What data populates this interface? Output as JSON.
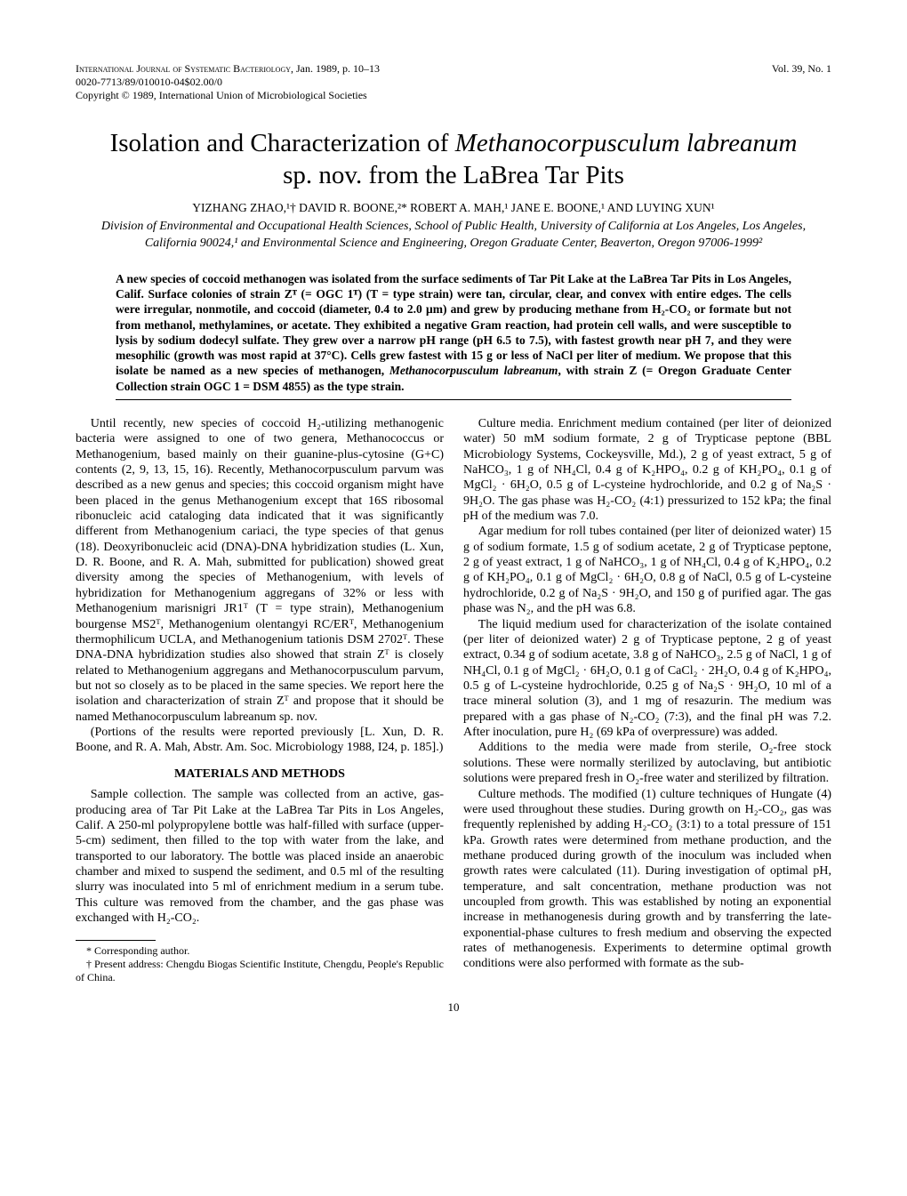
{
  "header": {
    "journal": "International Journal of Systematic Bacteriology",
    "date_pages": ", Jan. 1989, p. 10–13",
    "issn": "0020-7713/89/010010-04$02.00/0",
    "copyright": "Copyright © 1989, International Union of Microbiological Societies",
    "vol_issue": "Vol. 39, No. 1"
  },
  "title": {
    "line1_plain1": "Isolation and Characterization of ",
    "line1_italic": "Methanocorpusculum labreanum",
    "line2": "sp. nov. from the LaBrea Tar Pits"
  },
  "authors": "YIZHANG ZHAO,¹† DAVID R. BOONE,²* ROBERT A. MAH,¹ JANE E. BOONE,¹ AND LUYING XUN¹",
  "affiliations": "Division of Environmental and Occupational Health Sciences, School of Public Health, University of California at Los Angeles, Los Angeles, California 90024,¹ and Environmental Science and Engineering, Oregon Graduate Center, Beaverton, Oregon 97006-1999²",
  "abstract": {
    "text1": "A new species of coccoid methanogen was isolated from the surface sediments of Tar Pit Lake at the LaBrea Tar Pits in Los Angeles, Calif. Surface colonies of strain Zᵀ (= OGC 1ᵀ) (T = type strain) were tan, circular, clear, and convex with entire edges. The cells were irregular, nonmotile, and coccoid (diameter, 0.4 to 2.0 μm) and grew by producing methane from H₂-CO₂ or formate but not from methanol, methylamines, or acetate. They exhibited a negative Gram reaction, had protein cell walls, and were susceptible to lysis by sodium dodecyl sulfate. They grew over a narrow pH range (pH 6.5 to 7.5), with fastest growth near pH 7, and they were mesophilic (growth was most rapid at 37°C). Cells grew fastest with 15 g or less of NaCl per liter of medium. We propose that this isolate be named as a new species of methanogen, ",
    "italic1": "Methanocorpusculum labreanum",
    "text2": ", with strain Z (= Oregon Graduate Center Collection strain OGC 1 = DSM 4855) as the type strain."
  },
  "body": {
    "intro_p1": "Until recently, new species of coccoid H₂-utilizing methanogenic bacteria were assigned to one of two genera, Methanococcus or Methanogenium, based mainly on their guanine-plus-cytosine (G+C) contents (2, 9, 13, 15, 16). Recently, Methanocorpusculum parvum was described as a new genus and species; this coccoid organism might have been placed in the genus Methanogenium except that 16S ribosomal ribonucleic acid cataloging data indicated that it was significantly different from Methanogenium cariaci, the type species of that genus (18). Deoxyribonucleic acid (DNA)-DNA hybridization studies (L. Xun, D. R. Boone, and R. A. Mah, submitted for publication) showed great diversity among the species of Methanogenium, with levels of hybridization for Methanogenium aggregans of 32% or less with Methanogenium marisnigri JR1ᵀ (T = type strain), Methanogenium bourgense MS2ᵀ, Methanogenium olentangyi RC/ERᵀ, Methanogenium thermophilicum UCLA, and Methanogenium tationis DSM 2702ᵀ. These DNA-DNA hybridization studies also showed that strain Zᵀ is closely related to Methanogenium aggregans and Methanocorpusculum parvum, but not so closely as to be placed in the same species. We report here the isolation and characterization of strain Zᵀ and propose that it should be named Methanocorpusculum labreanum sp. nov.",
    "intro_p2": "(Portions of the results were reported previously [L. Xun, D. R. Boone, and R. A. Mah, Abstr. Am. Soc. Microbiology 1988, I24, p. 185].)",
    "section1_heading": "MATERIALS AND METHODS",
    "sample_collection": "Sample collection. The sample was collected from an active, gas-producing area of Tar Pit Lake at the LaBrea Tar Pits in Los Angeles, Calif. A 250-ml polypropylene bottle was half-filled with surface (upper-5-cm) sediment, then filled to the top with water from the lake, and transported to our laboratory. The bottle was placed inside an anaerobic chamber and mixed to suspend the sediment, and 0.5 ml of the resulting slurry was inoculated into 5 ml of enrichment medium in a serum tube. This culture was removed from the chamber, and the gas phase was exchanged with H₂-CO₂.",
    "culture_media_p1": "Culture media. Enrichment medium contained (per liter of deionized water) 50 mM sodium formate, 2 g of Trypticase peptone (BBL Microbiology Systems, Cockeysville, Md.), 2 g of yeast extract, 5 g of NaHCO₃, 1 g of NH₄Cl, 0.4 g of K₂HPO₄, 0.2 g of KH₂PO₄, 0.1 g of MgCl₂ · 6H₂O, 0.5 g of L-cysteine hydrochloride, and 0.2 g of Na₂S · 9H₂O. The gas phase was H₂-CO₂ (4:1) pressurized to 152 kPa; the final pH of the medium was 7.0.",
    "culture_media_p2": "Agar medium for roll tubes contained (per liter of deionized water) 15 g of sodium formate, 1.5 g of sodium acetate, 2 g of Trypticase peptone, 2 g of yeast extract, 1 g of NaHCO₃, 1 g of NH₄Cl, 0.4 g of K₂HPO₄, 0.2 g of KH₂PO₄, 0.1 g of MgCl₂ · 6H₂O, 0.8 g of NaCl, 0.5 g of L-cysteine hydrochloride, 0.2 g of Na₂S · 9H₂O, and 150 g of purified agar. The gas phase was N₂, and the pH was 6.8.",
    "culture_media_p3": "The liquid medium used for characterization of the isolate contained (per liter of deionized water) 2 g of Trypticase peptone, 2 g of yeast extract, 0.34 g of sodium acetate, 3.8 g of NaHCO₃, 2.5 g of NaCl, 1 g of NH₄Cl, 0.1 g of MgCl₂ · 6H₂O, 0.1 g of CaCl₂ · 2H₂O, 0.4 g of K₂HPO₄, 0.5 g of L-cysteine hydrochloride, 0.25 g of Na₂S · 9H₂O, 10 ml of a trace mineral solution (3), and 1 mg of resazurin. The medium was prepared with a gas phase of N₂-CO₂ (7:3), and the final pH was 7.2. After inoculation, pure H₂ (69 kPa of overpressure) was added.",
    "culture_media_p4": "Additions to the media were made from sterile, O₂-free stock solutions. These were normally sterilized by autoclaving, but antibiotic solutions were prepared fresh in O₂-free water and sterilized by filtration.",
    "culture_methods": "Culture methods. The modified (1) culture techniques of Hungate (4) were used throughout these studies. During growth on H₂-CO₂, gas was frequently replenished by adding H₂-CO₂ (3:1) to a total pressure of 151 kPa. Growth rates were determined from methane production, and the methane produced during growth of the inoculum was included when growth rates were calculated (11). During investigation of optimal pH, temperature, and salt concentration, methane production was not uncoupled from growth. This was established by noting an exponential increase in methanogenesis during growth and by transferring the late-exponential-phase cultures to fresh medium and observing the expected rates of methanogenesis. Experiments to determine optimal growth conditions were also performed with formate as the sub-"
  },
  "footnotes": {
    "f1": "* Corresponding author.",
    "f2": "† Present address: Chengdu Biogas Scientific Institute, Chengdu, People's Republic of China."
  },
  "page_number": "10"
}
